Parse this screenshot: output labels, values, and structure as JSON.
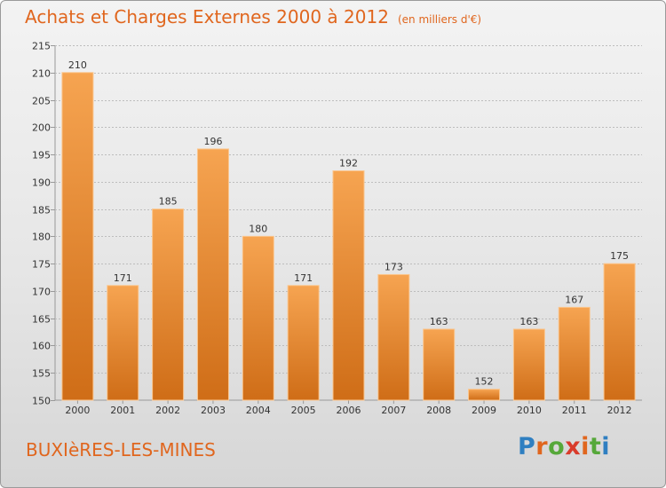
{
  "title": "Achats et Charges Externes 2000 à 2012",
  "unit": "(en milliers d'€)",
  "commune": "BUXIèRES-LES-MINES",
  "brand": {
    "text": "Proxiti",
    "letter_colors": [
      "#2f7fc1",
      "#e0661e",
      "#56a83a",
      "#d93b2b",
      "#e0661e",
      "#56a83a",
      "#2f7fc1"
    ]
  },
  "colors": {
    "title": "#e0661e",
    "bar_top": "#f6a451",
    "bar_bottom": "#cf6d17",
    "grid": "#bdbdbd"
  },
  "chart_data": {
    "type": "bar",
    "categories": [
      "2000",
      "2001",
      "2002",
      "2003",
      "2004",
      "2005",
      "2006",
      "2007",
      "2008",
      "2009",
      "2010",
      "2011",
      "2012"
    ],
    "values": [
      210,
      171,
      185,
      196,
      180,
      171,
      192,
      173,
      163,
      152,
      163,
      167,
      175
    ],
    "ylim": [
      150,
      215
    ],
    "yticks": [
      150,
      155,
      160,
      165,
      170,
      175,
      180,
      185,
      190,
      195,
      200,
      205,
      210,
      215
    ],
    "grid": true,
    "legend": "none"
  }
}
